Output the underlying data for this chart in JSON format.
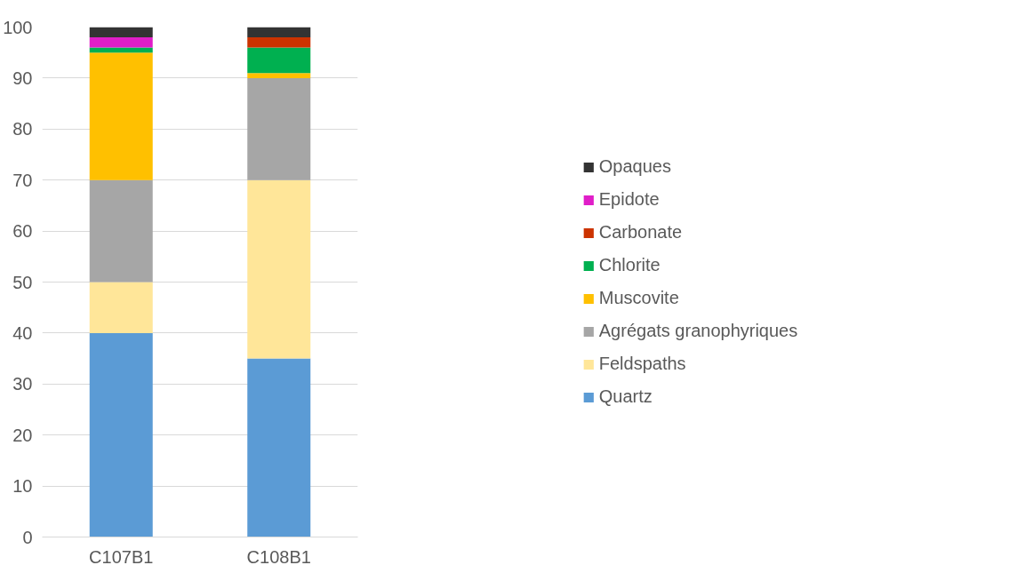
{
  "chart_data": {
    "type": "bar",
    "stacked": true,
    "categories": [
      "C107B1",
      "C108B1"
    ],
    "series": [
      {
        "name": "Quartz",
        "color": "#5b9bd5",
        "values": [
          40,
          35
        ]
      },
      {
        "name": "Feldspaths",
        "color": "#ffe699",
        "values": [
          10,
          35
        ]
      },
      {
        "name": "Agrégats granophyriques",
        "color": "#a6a6a6",
        "values": [
          20,
          20
        ]
      },
      {
        "name": "Muscovite",
        "color": "#ffc000",
        "values": [
          25,
          1
        ]
      },
      {
        "name": "Chlorite",
        "color": "#00b050",
        "values": [
          1,
          5
        ]
      },
      {
        "name": "Carbonate",
        "color": "#cc3300",
        "values": [
          0,
          2
        ]
      },
      {
        "name": "Epidote",
        "color": "#e01ec8",
        "values": [
          2,
          0
        ]
      },
      {
        "name": "Opaques",
        "color": "#333333",
        "values": [
          2,
          2
        ]
      }
    ],
    "ylim": [
      0,
      100
    ],
    "yticks": [
      0,
      10,
      20,
      30,
      40,
      50,
      60,
      70,
      80,
      90,
      100
    ],
    "grid": "y",
    "legend": "right"
  }
}
